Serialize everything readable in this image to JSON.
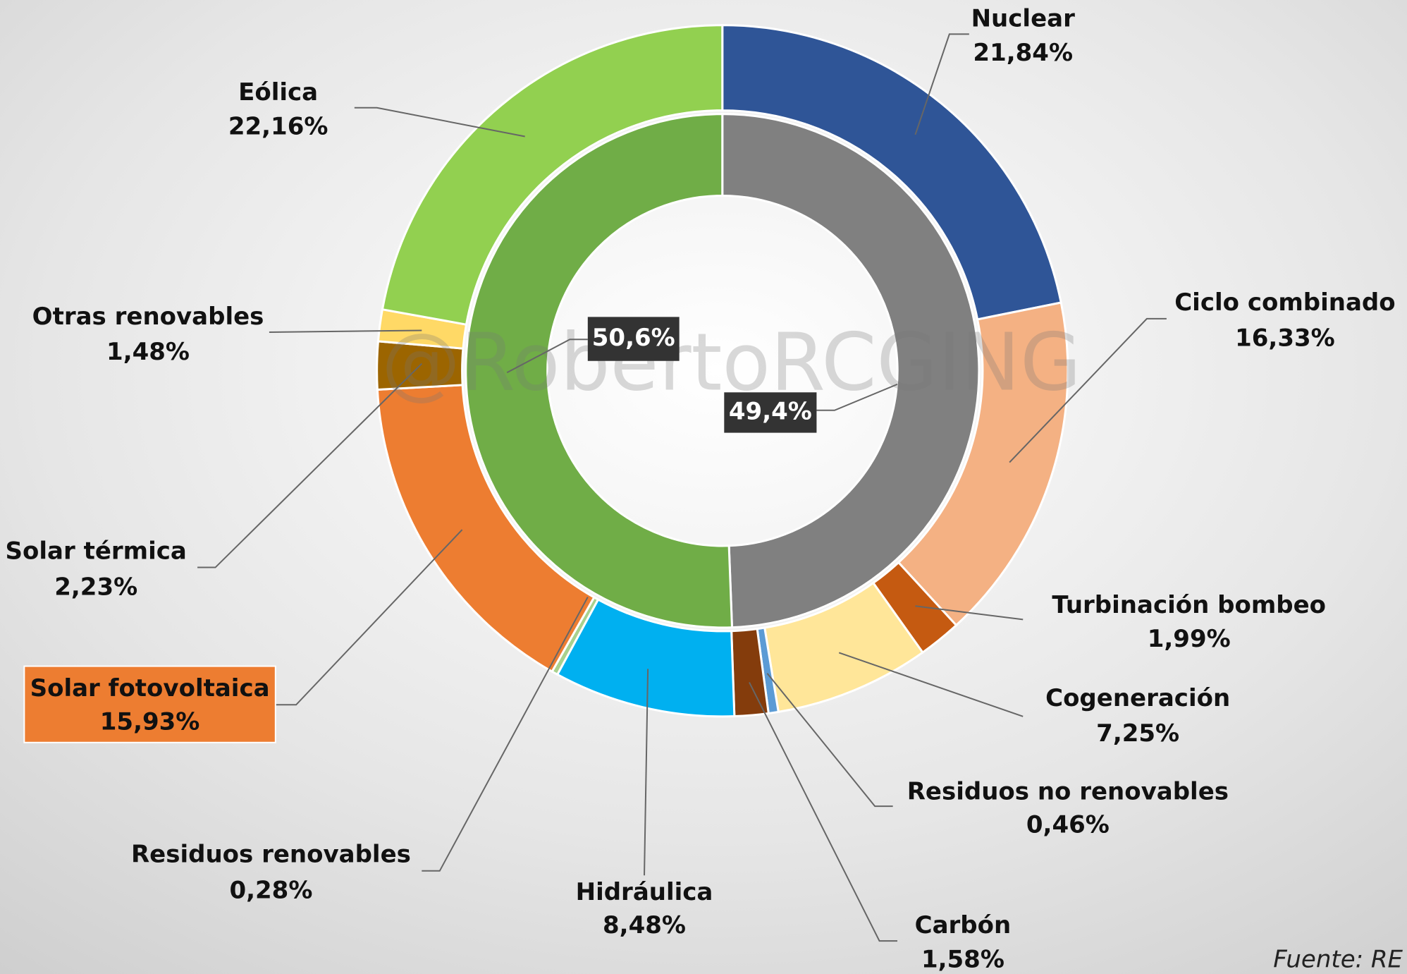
{
  "chart_data": {
    "type": "donut",
    "rings": [
      {
        "categories": [
          "Nuclear",
          "Ciclo combinado",
          "Turbinación bombeo",
          "Cogeneración",
          "Residuos no renovables",
          "Carbón",
          "Hidráulica",
          "Residuos renovables",
          "Solar fotovoltaica",
          "Solar térmica",
          "Otras renovables",
          "Eólica"
        ],
        "values": [
          21.84,
          16.33,
          1.99,
          7.25,
          0.46,
          1.58,
          8.48,
          0.28,
          15.93,
          2.23,
          1.48,
          22.16
        ],
        "value_labels": [
          "21,84%",
          "16,33%",
          "1,99%",
          "7,25%",
          "0,46%",
          "1,58%",
          "8,48%",
          "0,28%",
          "15,93%",
          "2,23%",
          "1,48%",
          "22,16%"
        ],
        "colors": [
          "#2f5597",
          "#f4b183",
          "#c55a11",
          "#ffe699",
          "#5b9bd5",
          "#843c0c",
          "#00b0f0",
          "#a9d18e",
          "#ed7d31",
          "#9c6500",
          "#ffd966",
          "#92d050"
        ]
      },
      {
        "values": [
          49.4,
          50.6
        ],
        "value_labels": [
          "49,4%",
          "50,6%"
        ],
        "colors": [
          "#808080",
          "#70ad47"
        ]
      }
    ],
    "watermark": "@RobertoRCGING",
    "source": "Fuente: RE"
  }
}
